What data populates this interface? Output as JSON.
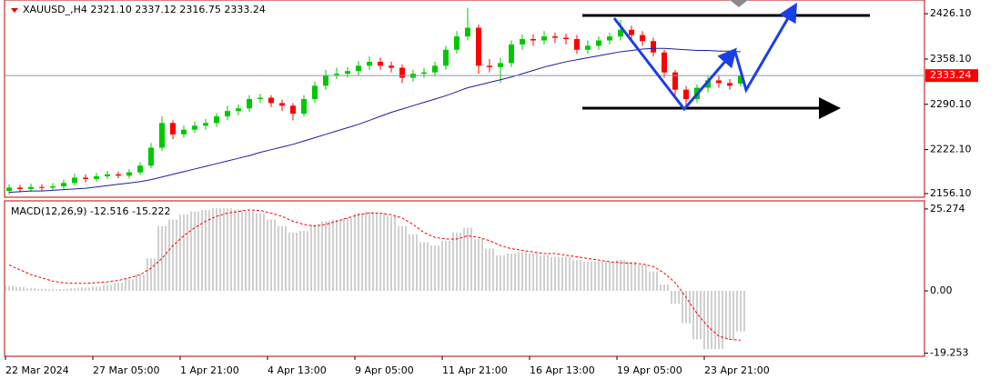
{
  "chart_data": [
    {
      "type": "candlestick",
      "title": "XAUUSD_,H4  2321.10 2337.12 2316.75 2333.24",
      "x": [
        "22 Mar 2024",
        null,
        null,
        null,
        null,
        null,
        null,
        null,
        "27 Mar 05:00",
        null,
        null,
        null,
        null,
        null,
        null,
        null,
        "1 Apr 21:00",
        null,
        null,
        null,
        null,
        null,
        null,
        null,
        "4 Apr 13:00",
        null,
        null,
        null,
        null,
        null,
        null,
        null,
        "9 Apr 05:00",
        null,
        null,
        null,
        null,
        null,
        null,
        null,
        "11 Apr 21:00",
        null,
        null,
        null,
        null,
        null,
        null,
        null,
        "16 Apr 13:00",
        null,
        null,
        null,
        null,
        null,
        null,
        null,
        "19 Apr 05:00",
        null,
        null,
        null,
        null,
        null,
        null,
        null,
        "23 Apr 21:00",
        null,
        null,
        null
      ],
      "open": [
        2160,
        2165,
        2163,
        2166,
        2165,
        2167,
        2172,
        2180,
        2178,
        2182,
        2185,
        2183,
        2188,
        2198,
        2225,
        2262,
        2245,
        2252,
        2258,
        2262,
        2272,
        2280,
        2284,
        2298,
        2300,
        2292,
        2288,
        2276,
        2298,
        2318,
        2334,
        2336,
        2340,
        2348,
        2354,
        2348,
        2345,
        2330,
        2336,
        2338,
        2348,
        2372,
        2392,
        2405,
        2348,
        2346,
        2352,
        2380,
        2388,
        2386,
        2392,
        2390,
        2388,
        2372,
        2378,
        2386,
        2392,
        2402,
        2394,
        2385,
        2368,
        2338,
        2312,
        2298,
        2315,
        2326,
        2322,
        2321.1
      ],
      "high": [
        2170,
        2169,
        2171,
        2170,
        2172,
        2177,
        2186,
        2185,
        2187,
        2190,
        2189,
        2193,
        2203,
        2232,
        2272,
        2266,
        2258,
        2264,
        2268,
        2277,
        2288,
        2290,
        2304,
        2306,
        2304,
        2297,
        2292,
        2304,
        2324,
        2342,
        2345,
        2346,
        2355,
        2362,
        2360,
        2354,
        2350,
        2342,
        2345,
        2354,
        2378,
        2400,
        2435,
        2410,
        2358,
        2360,
        2386,
        2395,
        2395,
        2400,
        2398,
        2396,
        2394,
        2386,
        2392,
        2398,
        2417,
        2408,
        2400,
        2390,
        2372,
        2342,
        2318,
        2320,
        2332,
        2334,
        2328,
        2337.12
      ],
      "low": [
        2155,
        2158,
        2159,
        2160,
        2161,
        2163,
        2168,
        2173,
        2174,
        2178,
        2179,
        2179,
        2184,
        2194,
        2220,
        2238,
        2240,
        2247,
        2252,
        2256,
        2266,
        2274,
        2279,
        2292,
        2286,
        2280,
        2266,
        2272,
        2292,
        2312,
        2328,
        2330,
        2334,
        2342,
        2342,
        2338,
        2322,
        2324,
        2330,
        2332,
        2342,
        2366,
        2386,
        2336,
        2338,
        2322,
        2346,
        2372,
        2378,
        2380,
        2382,
        2380,
        2366,
        2366,
        2372,
        2380,
        2386,
        2388,
        2378,
        2362,
        2330,
        2304,
        2286,
        2292,
        2308,
        2315,
        2312,
        2316.75
      ],
      "close": [
        2165,
        2163,
        2166,
        2165,
        2167,
        2172,
        2180,
        2178,
        2182,
        2185,
        2183,
        2188,
        2198,
        2225,
        2262,
        2245,
        2252,
        2258,
        2262,
        2272,
        2280,
        2284,
        2298,
        2300,
        2292,
        2288,
        2276,
        2298,
        2318,
        2334,
        2336,
        2340,
        2348,
        2354,
        2348,
        2345,
        2330,
        2336,
        2338,
        2348,
        2372,
        2392,
        2405,
        2348,
        2346,
        2352,
        2380,
        2388,
        2386,
        2392,
        2390,
        2388,
        2372,
        2378,
        2386,
        2392,
        2402,
        2394,
        2385,
        2368,
        2338,
        2312,
        2298,
        2315,
        2326,
        2322,
        2318,
        2333.24
      ],
      "up_color": "#00c800",
      "down_color": "#ff0000",
      "ma_values": [
        2158,
        2159,
        2160,
        2160,
        2161,
        2162,
        2163,
        2164,
        2166,
        2168,
        2170,
        2172,
        2174,
        2177,
        2181,
        2185,
        2189,
        2193,
        2197,
        2201,
        2205,
        2209,
        2213,
        2218,
        2222,
        2226,
        2230,
        2235,
        2240,
        2245,
        2250,
        2255,
        2260,
        2266,
        2272,
        2278,
        2283,
        2288,
        2293,
        2298,
        2303,
        2309,
        2315,
        2319,
        2323,
        2327,
        2331,
        2336,
        2341,
        2346,
        2350,
        2354,
        2357,
        2360,
        2363,
        2366,
        2369,
        2371,
        2373,
        2374,
        2374,
        2373,
        2372,
        2371,
        2371,
        2370,
        2370,
        2369
      ],
      "ma_color": "#1c1c9c",
      "ylim": [
        2150.6,
        2446.7
      ],
      "yticks": [
        {
          "value": 2426.1,
          "label": "2426.10"
        },
        {
          "value": 2358.1,
          "label": "2358.10"
        },
        {
          "value": 2290.1,
          "label": "2290.10"
        },
        {
          "value": 2222.1,
          "label": "2222.10"
        },
        {
          "value": 2156.1,
          "label": "2156.10"
        }
      ]
    },
    {
      "type": "macd",
      "title": "MACD(12,26,9) -12.516 -15.222",
      "histogram": [
        1.5,
        1.2,
        0.8,
        0.6,
        0.5,
        0.6,
        0.8,
        1,
        1.3,
        1.8,
        2.5,
        3.5,
        5,
        10,
        20,
        22,
        23.5,
        24.5,
        25,
        25.5,
        25.5,
        25,
        24.5,
        24,
        22,
        20,
        18,
        18.5,
        20.5,
        21.5,
        22,
        22.5,
        24,
        24.5,
        24,
        23,
        20,
        17.5,
        15,
        14,
        15.5,
        18,
        19.5,
        16,
        13,
        11,
        11.5,
        12,
        11.5,
        11,
        10.5,
        10.5,
        9.5,
        9,
        9,
        9,
        9.5,
        9,
        8,
        6,
        2,
        -4,
        -10,
        -15,
        -18,
        -18,
        -15,
        -12.516
      ],
      "histogram_color": "#c0c0c0",
      "signal": [
        8,
        6.5,
        5,
        4,
        3,
        2.5,
        2.3,
        2.3,
        2.5,
        2.8,
        3.2,
        4,
        5,
        7,
        10,
        14,
        17,
        19.5,
        21.5,
        23,
        24,
        24.5,
        25,
        24.8,
        24,
        23,
        21.5,
        20.5,
        20,
        20.5,
        21.5,
        22.5,
        23.5,
        24,
        24,
        23.5,
        22.5,
        20.5,
        18,
        16.5,
        16,
        16,
        17,
        16.5,
        15.5,
        14,
        13,
        12.5,
        12,
        11.5,
        11.5,
        11,
        10.5,
        10,
        9.5,
        9,
        8.7,
        8.5,
        8.3,
        7.5,
        5.5,
        2.5,
        -2,
        -7,
        -11,
        -14,
        -15,
        -15.222
      ],
      "signal_color": "#ff0000",
      "ylim": [
        -20.2,
        27.5
      ],
      "yticks": [
        25.274,
        {
          "value": 0,
          "label": "0.00"
        },
        -19.253
      ]
    }
  ]
}
